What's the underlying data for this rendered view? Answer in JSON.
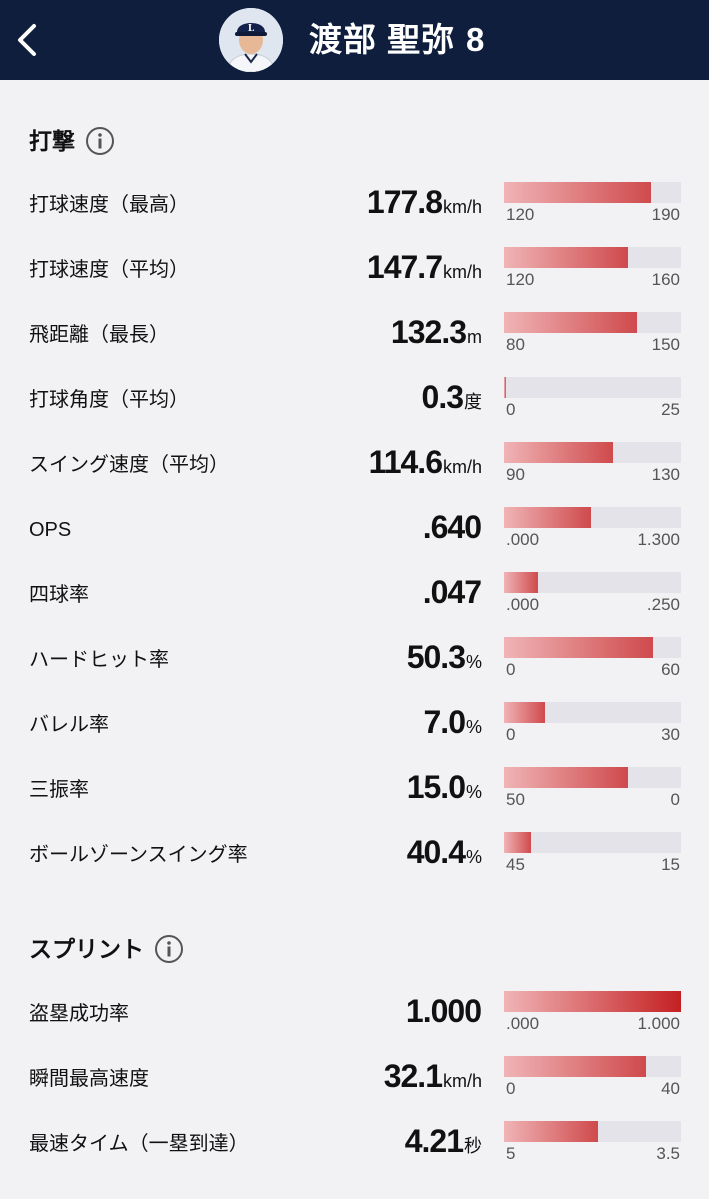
{
  "header": {
    "player_name": "渡部 聖弥",
    "player_number": "8"
  },
  "icons": {
    "back": "chevron-left-icon",
    "info": "info-icon"
  },
  "colors": {
    "header_bg": "#0f1e3c",
    "bar_fill_start": "#f0b4b6",
    "bar_fill_end": "#cf4a4c",
    "bar_track": "#e4e3ea"
  },
  "sections": [
    {
      "title": "打撃",
      "metrics": [
        {
          "label": "打球速度（最高）",
          "value": "177.8",
          "unit": "km/h",
          "min": "120",
          "max": "190",
          "fill": 0.83
        },
        {
          "label": "打球速度（平均）",
          "value": "147.7",
          "unit": "km/h",
          "min": "120",
          "max": "160",
          "fill": 0.7
        },
        {
          "label": "飛距離（最長）",
          "value": "132.3",
          "unit": "m",
          "min": "80",
          "max": "150",
          "fill": 0.75
        },
        {
          "label": "打球角度（平均）",
          "value": "0.3",
          "unit": "度",
          "min": "0",
          "max": "25",
          "fill": 0.012
        },
        {
          "label": "スイング速度（平均）",
          "value": "114.6",
          "unit": "km/h",
          "min": "90",
          "max": "130",
          "fill": 0.615
        },
        {
          "label": "OPS",
          "value": ".640",
          "unit": "",
          "min": ".000",
          "max": "1.300",
          "fill": 0.49
        },
        {
          "label": "四球率",
          "value": ".047",
          "unit": "",
          "min": ".000",
          "max": ".250",
          "fill": 0.19
        },
        {
          "label": "ハードヒット率",
          "value": "50.3",
          "unit": "%",
          "min": "0",
          "max": "60",
          "fill": 0.84
        },
        {
          "label": "バレル率",
          "value": "7.0",
          "unit": "%",
          "min": "0",
          "max": "30",
          "fill": 0.23
        },
        {
          "label": "三振率",
          "value": "15.0",
          "unit": "%",
          "min": "50",
          "max": "0",
          "fill": 0.7
        },
        {
          "label": "ボールゾーンスイング率",
          "value": "40.4",
          "unit": "%",
          "min": "45",
          "max": "15",
          "fill": 0.15
        }
      ]
    },
    {
      "title": "スプリント",
      "metrics": [
        {
          "label": "盗塁成功率",
          "value": "1.000",
          "unit": "",
          "min": ".000",
          "max": "1.000",
          "fill": 1.0
        },
        {
          "label": "瞬間最高速度",
          "value": "32.1",
          "unit": "km/h",
          "min": "0",
          "max": "40",
          "fill": 0.8
        },
        {
          "label": "最速タイム（一塁到達）",
          "value": "4.21",
          "unit": "秒",
          "min": "5",
          "max": "3.5",
          "fill": 0.53
        }
      ]
    }
  ]
}
